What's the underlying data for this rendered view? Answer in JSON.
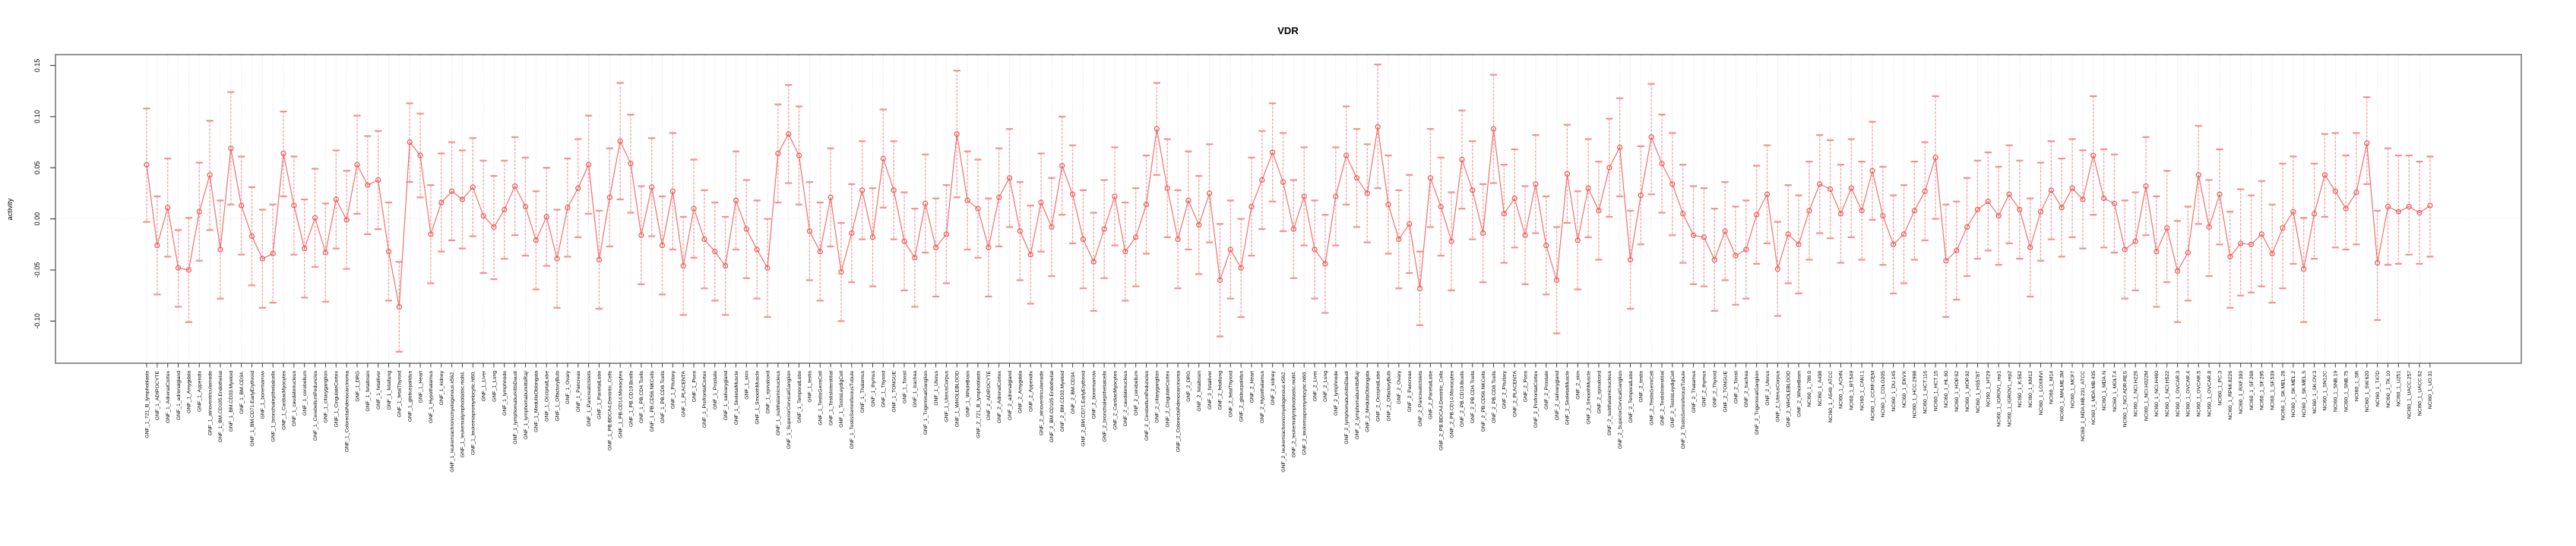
{
  "chart_data": {
    "type": "line",
    "subtype": "errorbar-series",
    "title": "VDR",
    "ylabel": "activity",
    "xlabel": "",
    "legend": "none",
    "grid": "vertical dotted gridline per category; dotted horizontal line at y=0",
    "ylim": [
      -0.142,
      0.16
    ],
    "yticks": [
      -0.1,
      -0.05,
      0.0,
      0.05,
      0.1,
      0.15
    ],
    "ytick_labels": [
      "-0.10",
      "-0.05",
      "0.00",
      "0.05",
      "0.10",
      "0.15"
    ],
    "colors": {
      "line": "#f27070",
      "marker": "#ee5555",
      "ci_line": "#f8a0a0",
      "ci_cap": "#f59090",
      "grid": "#dadada",
      "box": "#898989",
      "tick": "#444444",
      "text": "#000000",
      "background": "#ffffff"
    },
    "categories": [
      "GNF_1_721_B_lymphoblasts",
      "GNF_1_ADIPOCYTE",
      "GNF_1_AdrenalCortex",
      "GNF_1_adrenalgland",
      "GNF_1_Amygdala",
      "GNF_1_Appendix",
      "GNF_1_atrioventricularnode",
      "GNF_1_BM.CD105.Endothelial",
      "GNF_1_BM.CD33.Myeloid",
      "GNF_1_BM.CD34.",
      "GNF_1_BM.CD71.EarlyErythroid",
      "GNF_1_bonemarrow",
      "GNF_1_bronchialepithelialcells",
      "GNF_1_CardiacMyocytes",
      "GNF_1_caudatenucleus",
      "GNF_1_cerebellum",
      "GNF_1_CerebellumPeduncles",
      "GNF_1_ciliaryganglion",
      "GNF_1_CingulateCortex",
      "GNF_1_ColorectalAdenocarcinoma",
      "GNF_1_DRG",
      "GNF_1_fetalbrain",
      "GNF_1_fetalliver",
      "GNF_1_fetallung",
      "GNF_1_fetalThyroid",
      "GNF_1_globuspalidus",
      "GNF_1_Heart",
      "GNF_1_Hypothalamus",
      "GNF_1_kidney",
      "GNF_1_leukemiachronicmyelogenous.k562.",
      "GNF_1_leukemialymphoblastic.molt4.",
      "GNF_1_leukemiapromyelocytic.hl60.",
      "GNF_1_Liver",
      "GNF_1_Lung",
      "GNF_1_lymphnode",
      "GNF_1_lymphomaburkittsDaudi",
      "GNF_1_lymphomaburkittsRaji",
      "GNF_1_MedullaOblongata",
      "GNF_1_OccipitalLobe",
      "GNF_1_OlfactoryBulb",
      "GNF_1_Ovary",
      "GNF_1_Pancreas",
      "GNF_1_PancreaticIslets",
      "GNF_1_ParietalLobe",
      "GNF_1_PB.BDCA4.Dentritic_Cells",
      "GNF_1_PB.CD14.Monocytes",
      "GNF_1_PB.CD19.Bcells",
      "GNF_1_PB.CD4.Tcells",
      "GNF_1_PB.CD56.NKCells",
      "GNF_1_PB.CD8.Tcells",
      "GNF_1_Pituitary",
      "GNF_1_PLACENTA",
      "GNF_1_Pons",
      "GNF_1_PrefrontalCortex",
      "GNF_1_Prostate",
      "GNF_1_salivarygland",
      "GNF_1_SkeletalMuscle",
      "GNF_1_skin",
      "GNF_1_SmoothMuscle",
      "GNF_1_spinalcord",
      "GNF_1_subthalamicnucleus",
      "GNF_1_SuperiorCervicalGanglion",
      "GNF_1_TemporalLobe",
      "GNF_1_testis",
      "GNF_1_TestisGermCell",
      "GNF_1_TestisInterstitial",
      "GNF_1_TestisLeydigCell",
      "GNF_1_TestisSeminiferousTubule",
      "GNF_1_Thalamus",
      "GNF_1_thymus",
      "GNF_1_Thyroid",
      "GNF_1_TONGUE",
      "GNF_1_Tonsil",
      "GNF_1_trachea",
      "GNF_1_TrigeminalGanglion",
      "GNF_1_Uterus",
      "GNF_1_UterusCorpus",
      "GNF_1_WHOLEBLOOD",
      "GNF_1_WholeBrain",
      "GNF_2_721_B_lymphoblasts",
      "GNF_2_ADIPOCYTE",
      "GNF_2_AdrenalCortex",
      "GNF_2_adrenalgland",
      "GNF_2_Amygdala",
      "GNF_2_Appendix",
      "GNF_2_atrioventricularnode",
      "GNF_2_BM.CD105.Endothelial",
      "GNF_2_BM.CD33.Myeloid",
      "GNF_2_BM.CD34.",
      "GNF_2_BM.CD71.EarlyErythroid",
      "GNF_2_bonemarrow",
      "GNF_2_bronchialepithelialcells",
      "GNF_2_CardiacMyocytes",
      "GNF_2_caudatenucleus",
      "GNF_2_cerebellum",
      "GNF_2_CerebellumPeduncles",
      "GNF_2_ciliaryganglion",
      "GNF_2_CingulateCortex",
      "GNF_2_ColorectalAdenocarcinoma",
      "GNF_2_DRG",
      "GNF_2_fetalbrain",
      "GNF_2_fetalliver",
      "GNF_2_fetallung",
      "GNF_2_fetalThyroid",
      "GNF_2_globuspalidus",
      "GNF_2_Heart",
      "GNF_2_Hypothalamus",
      "GNF_2_kidney",
      "GNF_2_leukemiachronicmyelogenous.k562.",
      "GNF_2_leukemialymphoblastic.molt4.",
      "GNF_2_leukemiapromyelocytic.hl60.",
      "GNF_2_Liver",
      "GNF_2_Lung",
      "GNF_2_lymphnode",
      "GNF_2_lymphomaburkittsDaudi",
      "GNF_2_lymphomaburkittsRaji",
      "GNF_2_MedullaOblongata",
      "GNF_2_OccipitalLobe",
      "GNF_2_OlfactoryBulb",
      "GNF_2_Ovary",
      "GNF_2_Pancreas",
      "GNF_2_PancreaticIslets",
      "GNF_2_ParietalLobe",
      "GNF_2_PB.BDCA4.Dentritic_Cells",
      "GNF_2_PB.CD14.Monocytes",
      "GNF_2_PB.CD19.Bcells",
      "GNF_2_PB.CD4.Tcells",
      "GNF_2_PB.CD56.NKCells",
      "GNF_2_PB.CD8.Tcells",
      "GNF_2_Pituitary",
      "GNF_2_PLACENTA",
      "GNF_2_Pons",
      "GNF_2_PrefrontalCortex",
      "GNF_2_Prostate",
      "GNF_2_salivarygland",
      "GNF_2_SkeletalMuscle",
      "GNF_2_skin",
      "GNF_2_SmoothMuscle",
      "GNF_2_spinalcord",
      "GNF_2_subthalamicnucleus",
      "GNF_2_SuperiorCervicalGanglion",
      "GNF_2_TemporalLobe",
      "GNF_2_testis",
      "GNF_2_TestisGermCell",
      "GNF_2_TestisInterstitial",
      "GNF_2_TestisLeydigCell",
      "GNF_2_TestisSeminiferousTubule",
      "GNF_2_Thalamus",
      "GNF_2_thymus",
      "GNF_2_Thyroid",
      "GNF_2_TONGUE",
      "GNF_2_Tonsil",
      "GNF_2_trachea",
      "GNF_2_TrigeminalGanglion",
      "GNF_2_Uterus",
      "GNF_2_UterusCorpus",
      "GNF_2_WHOLEBLOOD",
      "GNF_2_WholeBrain",
      "NCI60_1_786.0",
      "NCI60_1_A498",
      "NCI60_1_A549_ATCC",
      "NCI60_1_ACHN",
      "NCI60_1_BT.549",
      "NCI60_1_CAKI.1",
      "NCI60_1_CCRF.CEM",
      "NCI60_1_COLO205",
      "NCI60_1_DU.145",
      "NCI60_1_EKVX",
      "NCI60_1_HCC.2998",
      "NCI60_1_HCT.116",
      "NCI60_1_HCT.15",
      "NCI60_1_HL.60",
      "NCI60_1_HOP.62",
      "NCI60_1_HOP.92",
      "NCI60_1_HS578T",
      "NCI60_1_HT29",
      "NCI60_1_IGROV1_rep1",
      "NCI60_1_IGROV1_rep2",
      "NCI60_1_K.562",
      "NCI60_1_KM12",
      "NCI60_1_LOXIMVI",
      "NCI60_1_M14",
      "NCI60_1_MALME.3M",
      "NCI60_1_MCF7",
      "NCI60_1_MDA.MB.231_ATCC",
      "NCI60_1_MDA.MB.435",
      "NCI60_1_MDA.N",
      "NCI60_1_MOLT.4",
      "NCI60_1_NCI.ADR.RES",
      "NCI60_1_NCI.H226",
      "NCI60_1_NCI.H322M",
      "NCI60_1_NCI.H460",
      "NCI60_1_NCI.H522",
      "NCI60_1_OVCAR.3",
      "NCI60_1_OVCAR.4",
      "NCI60_1_OVCAR.5",
      "NCI60_1_OVCAR.8",
      "NCI60_1_PC.3",
      "NCI60_1_RPMI.8226",
      "NCI60_1_RXF.393",
      "NCI60_1_SF.268",
      "NCI60_1_SF.295",
      "NCI60_1_SF.539",
      "NCI60_1_SK.MEL.28",
      "NCI60_1_SK.MEL.2",
      "NCI60_1_SK.MEL.5",
      "NCI60_1_SK.OV.3",
      "NCI60_1_SN12C",
      "NCI60_1_SNB.19",
      "NCI60_1_SNB.75",
      "NCI60_1_SR",
      "NCI60_1_SW.620",
      "NCI60_1_T47D",
      "NCI60_1_TK.10",
      "NCI60_1_U251",
      "NCI60_1_UACC.257",
      "NCI60_1_UACC.62",
      "NCI60_1_UO.31"
    ],
    "values": [
      0.053,
      -0.026,
      0.011,
      -0.048,
      -0.05,
      0.007,
      0.043,
      -0.03,
      0.069,
      0.013,
      -0.017,
      -0.039,
      -0.034,
      0.064,
      0.013,
      -0.029,
      0.001,
      -0.033,
      0.019,
      -0.001,
      0.053,
      0.033,
      0.038,
      -0.032,
      -0.086,
      0.075,
      0.062,
      -0.015,
      0.016,
      0.027,
      0.019,
      0.031,
      0.003,
      -0.008,
      0.009,
      0.032,
      0.012,
      -0.021,
      0.002,
      -0.039,
      0.011,
      0.03,
      0.053,
      -0.04,
      0.021,
      0.076,
      0.054,
      -0.016,
      0.031,
      -0.026,
      0.027,
      -0.046,
      0.01,
      -0.02,
      -0.032,
      -0.046,
      0.018,
      -0.01,
      -0.03,
      -0.048,
      0.064,
      0.083,
      0.062,
      -0.012,
      -0.032,
      0.021,
      -0.052,
      -0.014,
      0.028,
      -0.018,
      0.059,
      0.028,
      -0.022,
      -0.038,
      0.015,
      -0.028,
      -0.015,
      0.083,
      0.018,
      0.01,
      -0.028,
      0.021,
      0.04,
      -0.012,
      -0.035,
      0.016,
      -0.008,
      0.052,
      0.024,
      -0.02,
      -0.042,
      -0.01,
      0.022,
      -0.032,
      -0.018,
      0.014,
      0.088,
      0.03,
      -0.02,
      0.018,
      -0.006,
      0.025,
      -0.06,
      -0.03,
      -0.048,
      0.012,
      0.038,
      0.065,
      0.036,
      -0.01,
      0.022,
      -0.03,
      -0.044,
      0.022,
      0.062,
      0.04,
      0.025,
      0.09,
      0.014,
      -0.02,
      -0.005,
      -0.068,
      0.04,
      0.012,
      -0.022,
      0.058,
      0.028,
      -0.014,
      0.088,
      0.005,
      0.02,
      -0.016,
      0.034,
      -0.026,
      -0.06,
      0.044,
      -0.021,
      0.03,
      0.008,
      0.05,
      0.07,
      -0.04,
      0.023,
      0.08,
      0.054,
      0.034,
      0.005,
      -0.016,
      -0.018,
      -0.04,
      -0.012,
      -0.036,
      -0.03,
      0.004,
      0.024,
      -0.049,
      -0.015,
      -0.025,
      0.008,
      0.034,
      0.029,
      0.005,
      0.03,
      0.008,
      0.047,
      0.003,
      -0.025,
      -0.015,
      0.008,
      0.027,
      0.06,
      -0.041,
      -0.031,
      -0.008,
      0.009,
      0.017,
      0.003,
      0.024,
      0.009,
      -0.028,
      0.007,
      0.028,
      0.011,
      0.03,
      0.019,
      0.062,
      0.02,
      0.015,
      -0.03,
      -0.022,
      0.032,
      -0.032,
      -0.009,
      -0.051,
      -0.033,
      0.043,
      -0.008,
      0.024,
      -0.037,
      -0.024,
      -0.025,
      -0.015,
      -0.034,
      -0.009,
      0.007,
      -0.049,
      0.005,
      0.043,
      0.027,
      0.01,
      0.026,
      0.074,
      -0.043,
      0.012,
      0.007,
      0.012,
      0.006,
      0.013
    ],
    "ci_low": [
      -0.003,
      -0.074,
      -0.037,
      -0.086,
      -0.101,
      -0.041,
      -0.011,
      -0.078,
      0.014,
      -0.035,
      -0.065,
      -0.087,
      -0.082,
      0.022,
      -0.035,
      -0.077,
      -0.047,
      -0.081,
      -0.029,
      -0.049,
      0.005,
      -0.015,
      -0.01,
      -0.08,
      -0.13,
      0.036,
      0.021,
      -0.063,
      -0.032,
      -0.021,
      -0.029,
      -0.017,
      -0.053,
      -0.059,
      -0.039,
      -0.016,
      -0.036,
      -0.069,
      -0.046,
      -0.087,
      -0.037,
      -0.018,
      0.005,
      -0.088,
      -0.027,
      0.019,
      0.006,
      -0.064,
      -0.017,
      -0.074,
      -0.03,
      -0.094,
      -0.038,
      -0.068,
      -0.08,
      -0.094,
      -0.03,
      -0.058,
      -0.078,
      -0.096,
      0.016,
      0.035,
      0.014,
      -0.06,
      -0.08,
      -0.027,
      -0.1,
      -0.062,
      -0.02,
      -0.066,
      0.011,
      -0.02,
      -0.07,
      -0.086,
      -0.033,
      -0.076,
      -0.063,
      0.021,
      -0.03,
      -0.038,
      -0.076,
      -0.027,
      -0.008,
      -0.06,
      -0.083,
      -0.032,
      -0.056,
      0.004,
      -0.024,
      -0.068,
      -0.09,
      -0.058,
      -0.026,
      -0.08,
      -0.066,
      -0.034,
      0.043,
      -0.018,
      -0.068,
      -0.03,
      -0.054,
      -0.023,
      -0.115,
      -0.078,
      -0.096,
      -0.036,
      -0.01,
      0.017,
      -0.012,
      -0.058,
      -0.026,
      -0.078,
      -0.092,
      -0.026,
      0.014,
      -0.008,
      -0.023,
      0.03,
      -0.034,
      -0.068,
      -0.053,
      -0.104,
      -0.008,
      -0.036,
      -0.07,
      0.01,
      -0.02,
      -0.062,
      0.035,
      -0.043,
      -0.028,
      -0.064,
      -0.014,
      -0.074,
      -0.112,
      -0.004,
      -0.069,
      -0.018,
      -0.04,
      0.002,
      0.022,
      -0.088,
      -0.025,
      0.024,
      0.006,
      -0.016,
      -0.043,
      -0.064,
      -0.066,
      -0.09,
      -0.06,
      -0.084,
      -0.078,
      -0.044,
      -0.024,
      -0.095,
      -0.063,
      -0.073,
      -0.04,
      -0.014,
      -0.019,
      -0.043,
      -0.018,
      -0.04,
      -0.001,
      -0.045,
      -0.073,
      -0.063,
      -0.04,
      -0.021,
      0.0,
      -0.096,
      -0.079,
      -0.056,
      -0.039,
      -0.031,
      -0.045,
      -0.024,
      -0.039,
      -0.076,
      -0.041,
      -0.02,
      -0.037,
      -0.018,
      -0.029,
      0.004,
      -0.028,
      -0.033,
      -0.078,
      -0.07,
      -0.016,
      -0.086,
      -0.062,
      -0.101,
      -0.08,
      -0.005,
      -0.056,
      -0.025,
      -0.087,
      -0.075,
      -0.072,
      -0.066,
      -0.082,
      -0.068,
      -0.044,
      -0.101,
      -0.039,
      0.002,
      -0.028,
      -0.03,
      -0.025,
      0.034,
      -0.099,
      -0.045,
      -0.044,
      -0.035,
      -0.044,
      -0.037
    ],
    "ci_high": [
      0.108,
      0.022,
      0.059,
      -0.011,
      0.001,
      0.055,
      0.096,
      0.018,
      0.124,
      0.061,
      0.031,
      0.009,
      0.014,
      0.105,
      0.061,
      0.019,
      0.049,
      0.015,
      0.067,
      0.047,
      0.101,
      0.081,
      0.086,
      0.016,
      -0.042,
      0.113,
      0.103,
      0.033,
      0.064,
      0.075,
      0.067,
      0.079,
      0.057,
      0.042,
      0.057,
      0.08,
      0.06,
      0.027,
      0.05,
      0.009,
      0.059,
      0.078,
      0.101,
      0.008,
      0.069,
      0.133,
      0.102,
      0.032,
      0.079,
      0.022,
      0.084,
      0.002,
      0.058,
      0.028,
      0.016,
      0.002,
      0.066,
      0.038,
      0.018,
      0.0,
      0.112,
      0.131,
      0.11,
      0.036,
      0.016,
      0.069,
      -0.004,
      0.034,
      0.076,
      0.03,
      0.107,
      0.076,
      0.026,
      0.01,
      0.063,
      0.02,
      0.033,
      0.145,
      0.066,
      0.058,
      0.02,
      0.069,
      0.088,
      0.036,
      0.013,
      0.064,
      0.04,
      0.1,
      0.072,
      0.028,
      0.006,
      0.038,
      0.07,
      0.016,
      0.03,
      0.062,
      0.133,
      0.078,
      0.028,
      0.066,
      0.042,
      0.073,
      -0.005,
      0.018,
      0.0,
      0.06,
      0.086,
      0.113,
      0.084,
      0.038,
      0.07,
      0.018,
      0.004,
      0.07,
      0.11,
      0.088,
      0.073,
      0.151,
      0.062,
      0.028,
      0.043,
      -0.032,
      0.088,
      0.06,
      0.026,
      0.106,
      0.076,
      0.034,
      0.141,
      0.053,
      0.068,
      0.032,
      0.082,
      0.022,
      -0.008,
      0.092,
      0.027,
      0.078,
      0.056,
      0.098,
      0.118,
      0.008,
      0.071,
      0.132,
      0.102,
      0.084,
      0.053,
      0.032,
      0.03,
      0.01,
      0.036,
      0.012,
      0.018,
      0.052,
      0.072,
      -0.003,
      0.033,
      0.023,
      0.056,
      0.082,
      0.077,
      0.053,
      0.078,
      0.056,
      0.095,
      0.051,
      0.023,
      0.033,
      0.056,
      0.075,
      0.12,
      0.014,
      0.017,
      0.04,
      0.057,
      0.065,
      0.051,
      0.072,
      0.057,
      0.02,
      0.055,
      0.076,
      0.059,
      0.078,
      0.067,
      0.12,
      0.068,
      0.063,
      0.018,
      0.026,
      0.08,
      0.022,
      0.047,
      -0.002,
      0.012,
      0.091,
      0.038,
      0.068,
      0.007,
      0.029,
      0.023,
      0.037,
      0.014,
      0.054,
      0.061,
      0.001,
      0.054,
      0.083,
      0.084,
      0.062,
      0.084,
      0.119,
      0.008,
      0.069,
      0.062,
      0.062,
      0.056,
      0.061
    ]
  }
}
